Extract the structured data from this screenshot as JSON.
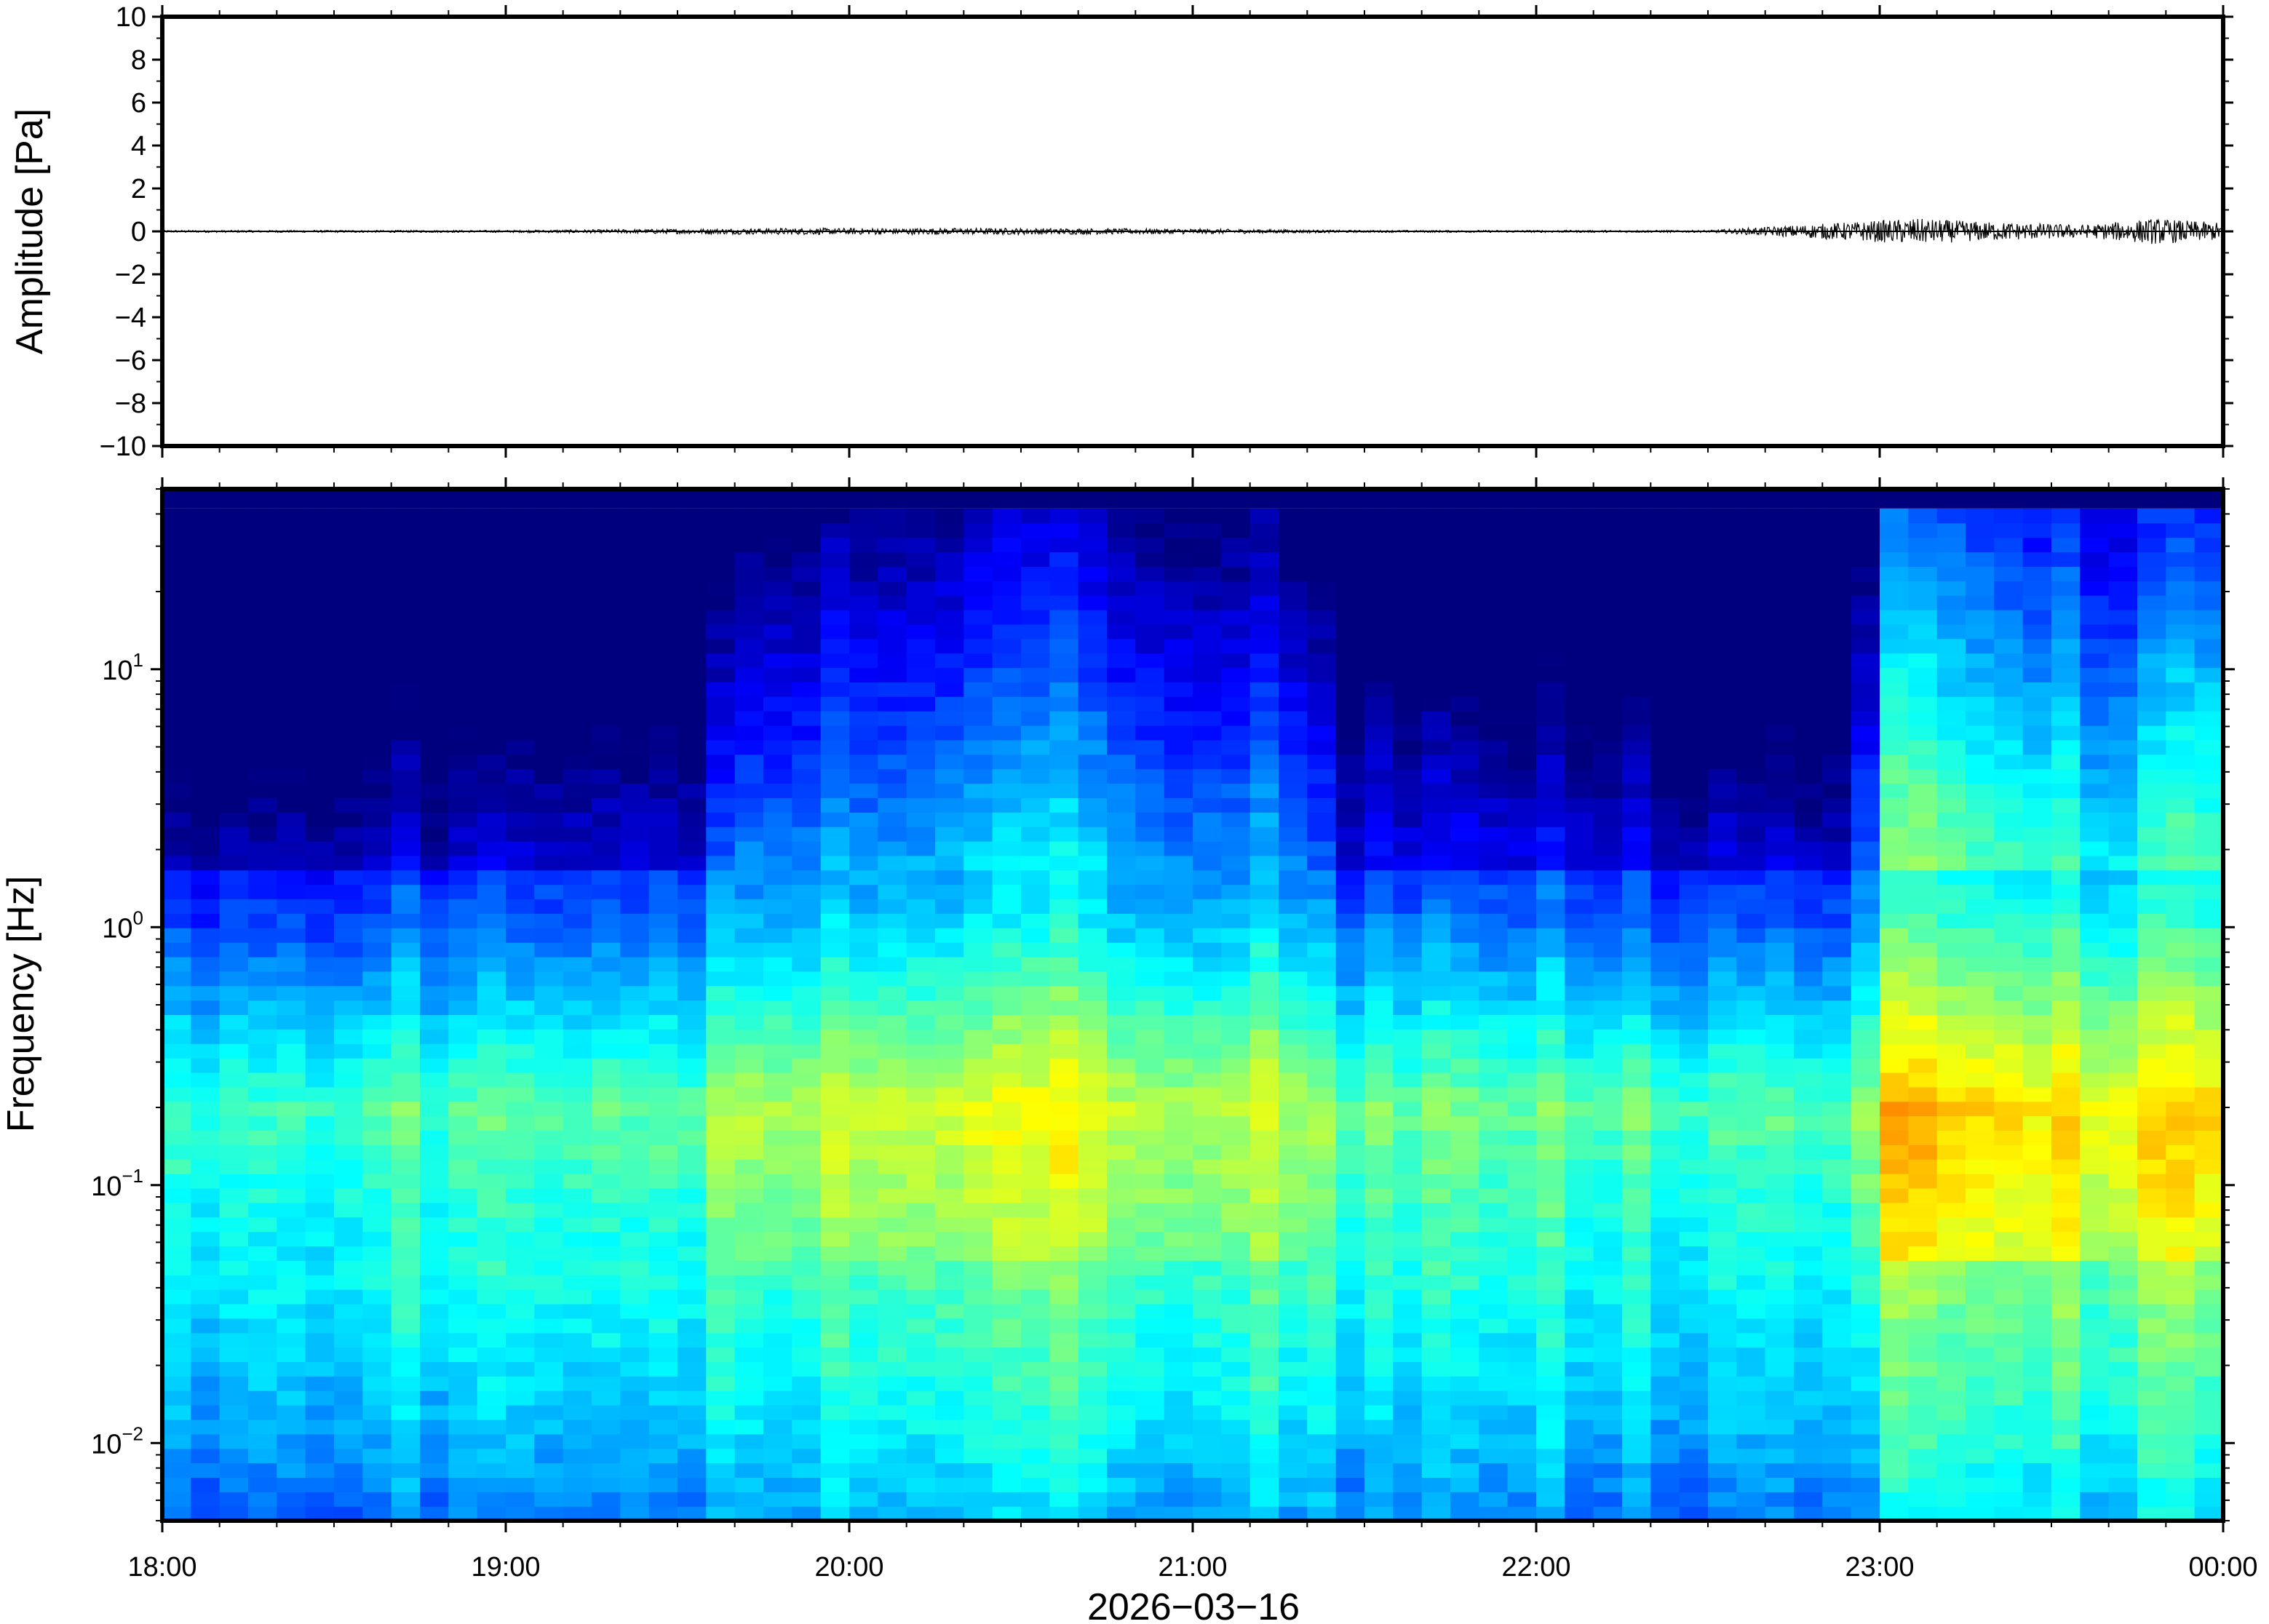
{
  "chart_data": [
    {
      "type": "line",
      "ylabel": "Amplitude [Pa]",
      "xlabel": "",
      "ylim": [
        -10,
        10
      ],
      "y_ticks": [
        "10",
        "8",
        "6",
        "4",
        "2",
        "0",
        "−2",
        "−4",
        "−6",
        "−8",
        "−10"
      ],
      "x_range_hours": [
        18,
        24
      ],
      "x_tick_labels": [
        "18:00",
        "19:00",
        "20:00",
        "21:00",
        "22:00",
        "23:00",
        "00:00"
      ],
      "series": [
        {
          "values_note_points": [
            {
              "t": 18.0,
              "amp": 0.05
            },
            {
              "t": 19.0,
              "amp": 0.05
            },
            {
              "t": 19.8,
              "amp": 0.15
            },
            {
              "t": 20.5,
              "amp": 0.15
            },
            {
              "t": 21.0,
              "amp": 0.12
            },
            {
              "t": 21.5,
              "amp": 0.05
            },
            {
              "t": 22.5,
              "amp": 0.05
            },
            {
              "t": 23.1,
              "amp": 0.6
            },
            {
              "t": 23.3,
              "amp": 0.45
            },
            {
              "t": 23.6,
              "amp": 0.3
            },
            {
              "t": 23.8,
              "amp": 0.6
            },
            {
              "t": 24.0,
              "amp": 0.4
            }
          ]
        }
      ],
      "line_color": "#000000"
    },
    {
      "type": "heatmap",
      "ylabel": "Frequency [Hz]",
      "xlabel": "2026−03−16",
      "y_scale": "log",
      "ylim": [
        0.005,
        50
      ],
      "y_ticks": [
        {
          "base": "10",
          "exp": "1",
          "value": 10
        },
        {
          "base": "10",
          "exp": "0",
          "value": 1
        },
        {
          "base": "10",
          "exp": "−1",
          "value": 0.1
        },
        {
          "base": "10",
          "exp": "−2",
          "value": 0.01
        }
      ],
      "x_range_hours": [
        18,
        24
      ],
      "x_tick_labels": [
        "18:00",
        "19:00",
        "20:00",
        "21:00",
        "22:00",
        "23:00",
        "00:00"
      ],
      "colormap": [
        "#00007f",
        "#0000ff",
        "#007fff",
        "#00ffff",
        "#7fff7f",
        "#ffff00",
        "#ff7f00"
      ],
      "activity_profile": [
        {
          "t": 18.0,
          "level": 0.15
        },
        {
          "t": 19.6,
          "level": 0.2
        },
        {
          "t": 19.65,
          "level": 0.5
        },
        {
          "t": 20.2,
          "level": 0.55
        },
        {
          "t": 20.5,
          "level": 0.65
        },
        {
          "t": 21.0,
          "level": 0.55
        },
        {
          "t": 21.35,
          "level": 0.5
        },
        {
          "t": 21.4,
          "level": 0.25
        },
        {
          "t": 22.9,
          "level": 0.2
        },
        {
          "t": 23.05,
          "level": 0.95
        },
        {
          "t": 23.4,
          "level": 0.8
        },
        {
          "t": 23.7,
          "level": 0.7
        },
        {
          "t": 24.0,
          "level": 0.85
        }
      ]
    }
  ]
}
